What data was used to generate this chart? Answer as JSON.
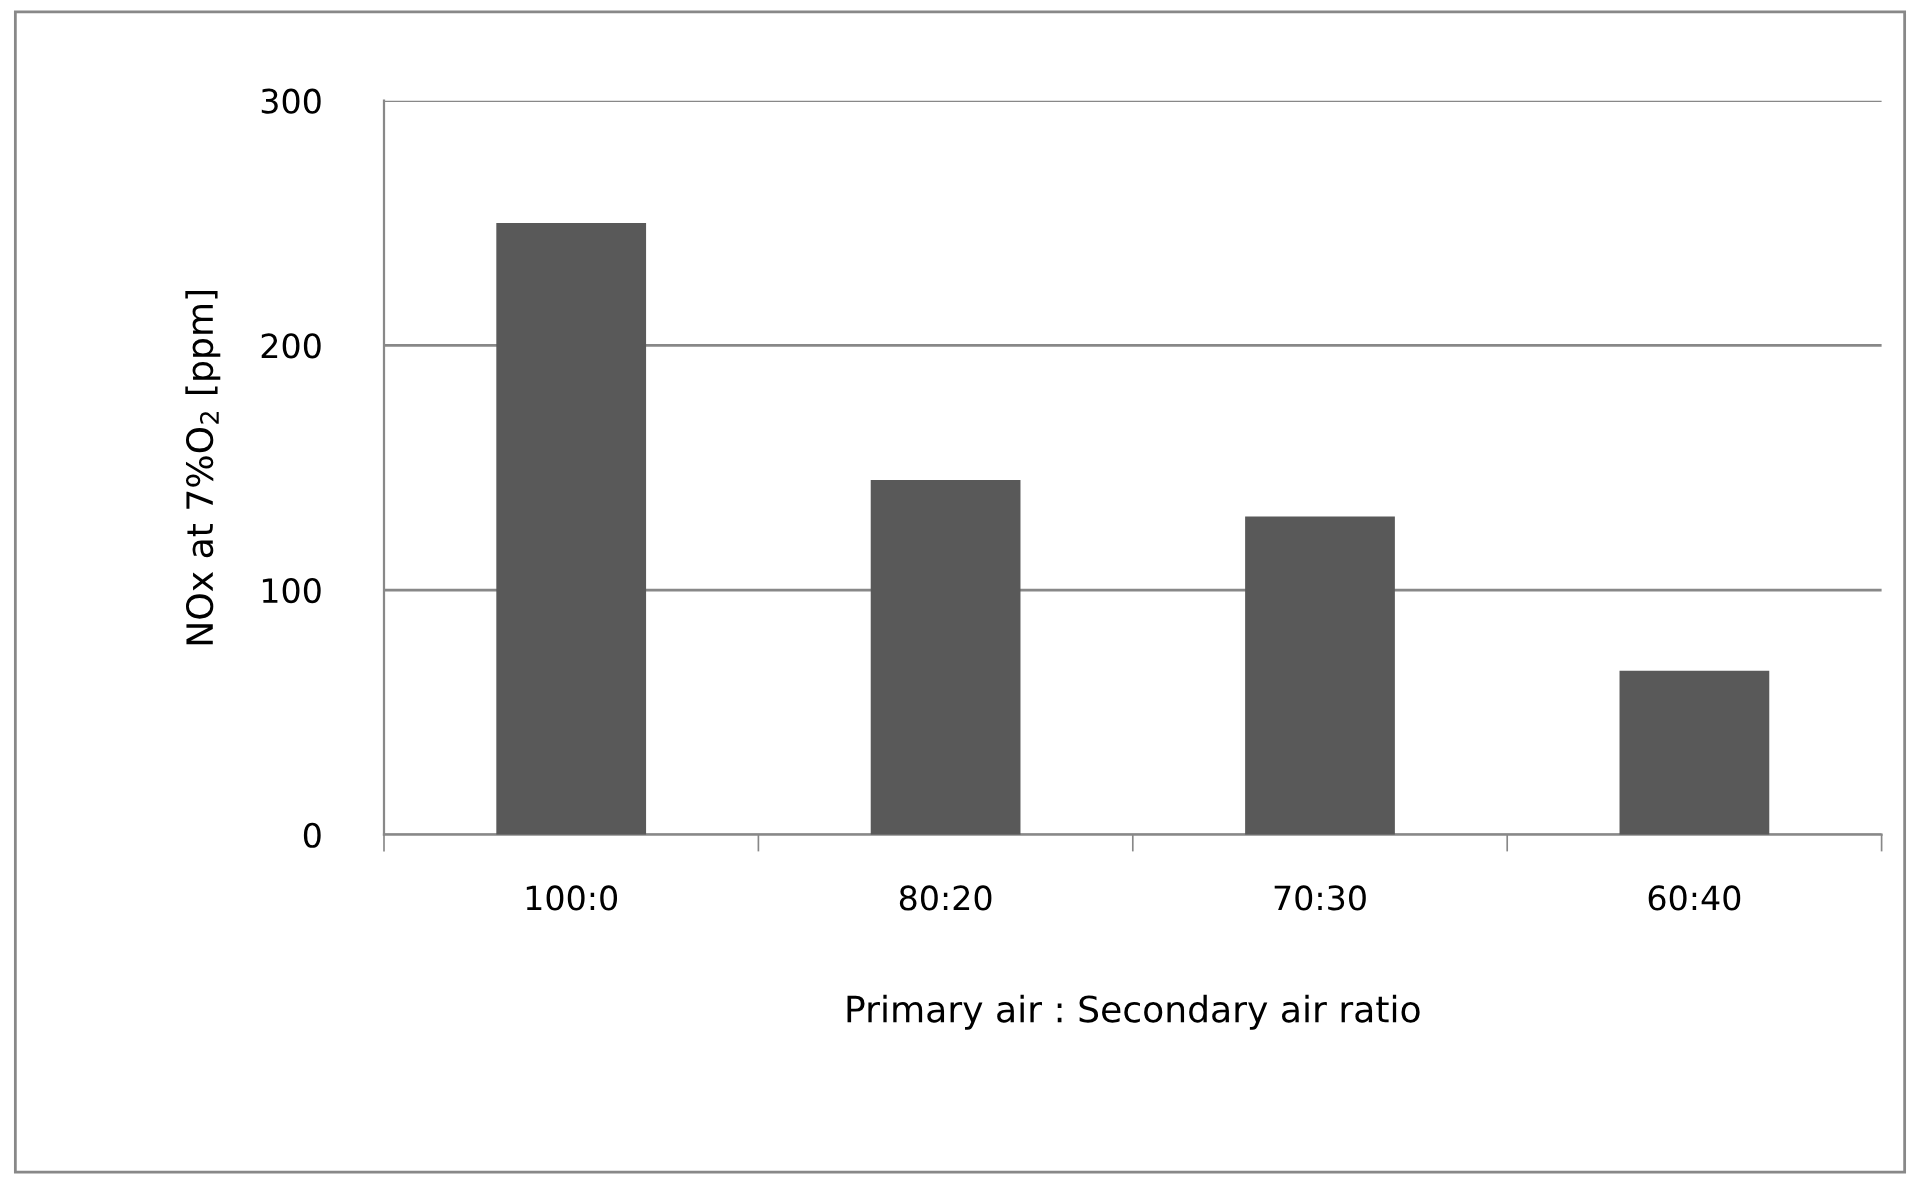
{
  "chart_data": {
    "type": "bar",
    "xlabel": "Primary air : Secondary air ratio",
    "ylabel": "NOx at 7%O$_{2}$ [ppm]",
    "categories": [
      "100:0",
      "80:20",
      "70:30",
      "60:40"
    ],
    "values": [
      250,
      145,
      130,
      67
    ],
    "color": "#595959",
    "ylim": [
      0,
      300
    ],
    "yticks": [
      0,
      100,
      200,
      300
    ],
    "grid": "y"
  }
}
